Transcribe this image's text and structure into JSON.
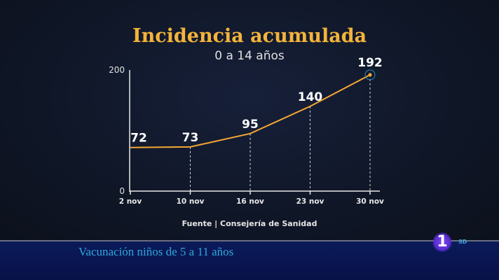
{
  "chart_data": {
    "type": "line",
    "title": "Incidencia acumulada",
    "subtitle": "0 a 14 años",
    "categories": [
      "2 nov",
      "10 nov",
      "16 nov",
      "23 nov",
      "30 nov"
    ],
    "values": [
      72,
      73,
      95,
      140,
      192
    ],
    "data_labels": [
      "72",
      "73",
      "95",
      "140",
      "192"
    ],
    "yticks": [
      "0",
      "200"
    ],
    "ylim": [
      0,
      200
    ],
    "grid": false,
    "line_color": "#f4a733",
    "source": "Fuente | Consejería de Sanidad"
  },
  "ticker": {
    "text": "Vacunación niños de 5 a 11 años",
    "logo": "1",
    "logo_suffix": "SD"
  }
}
